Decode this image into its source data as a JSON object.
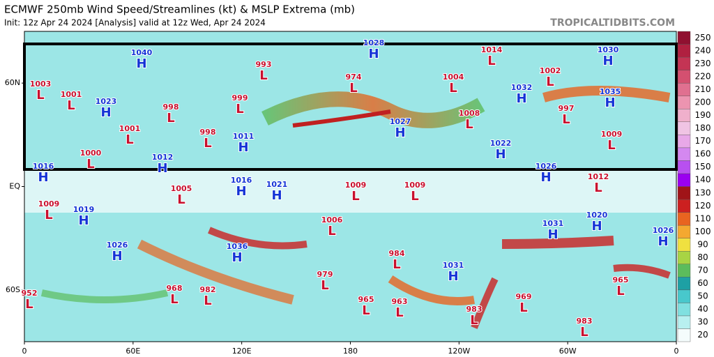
{
  "header": {
    "title": "ECMWF 250mb Wind Speed/Streamlines (kt) & MSLP Extrema (mb)",
    "subtitle": "Init: 12z Apr 24 2024   [Analysis]   valid at 12z Wed, Apr 24 2024",
    "site": "TROPICALTIDBITS.COM"
  },
  "map": {
    "xlim": [
      0,
      360
    ],
    "ylim": [
      -90,
      90
    ],
    "xticks": [
      {
        "value": 0,
        "label": "0"
      },
      {
        "value": 60,
        "label": "60E"
      },
      {
        "value": 120,
        "label": "120E"
      },
      180,
      {
        "value": 240,
        "label": "120W"
      },
      {
        "value": 300,
        "label": "60W"
      },
      {
        "value": 360,
        "label": "0"
      }
    ],
    "yticks": [
      {
        "value": 60,
        "label": "60N"
      },
      {
        "value": 0,
        "label": "EQ"
      },
      {
        "value": -60,
        "label": "60S"
      }
    ],
    "high_color": "#1433d6",
    "low_color": "#c8102e",
    "extrema": [
      {
        "kind": "H",
        "value": 1040
      },
      {
        "kind": "L",
        "value": 993
      },
      {
        "kind": "H",
        "value": 1028
      },
      {
        "kind": "L",
        "value": 1014
      },
      {
        "kind": "H",
        "value": 1030
      },
      {
        "kind": "L",
        "value": 1003
      },
      {
        "kind": "L",
        "value": 1001
      },
      {
        "kind": "H",
        "value": 1023
      },
      {
        "kind": "L",
        "value": 998
      },
      {
        "kind": "L",
        "value": 999
      },
      {
        "kind": "L",
        "value": 974
      },
      {
        "kind": "L",
        "value": 1004
      },
      {
        "kind": "L",
        "value": 1002
      },
      {
        "kind": "H",
        "value": 1032
      },
      {
        "kind": "H",
        "value": 1035
      },
      {
        "kind": "L",
        "value": 1001
      },
      {
        "kind": "L",
        "value": 998
      },
      {
        "kind": "H",
        "value": 1011
      },
      {
        "kind": "H",
        "value": 1027
      },
      {
        "kind": "L",
        "value": 1008
      },
      {
        "kind": "L",
        "value": 997
      },
      {
        "kind": "L",
        "value": 1009
      },
      {
        "kind": "H",
        "value": 1022
      },
      {
        "kind": "L",
        "value": 1000
      },
      {
        "kind": "H",
        "value": 1012
      },
      {
        "kind": "H",
        "value": 1016
      },
      {
        "kind": "H",
        "value": 1026
      },
      {
        "kind": "L",
        "value": 1012
      },
      {
        "kind": "L",
        "value": 1005
      },
      {
        "kind": "H",
        "value": 1016
      },
      {
        "kind": "H",
        "value": 1021
      },
      {
        "kind": "L",
        "value": 1009
      },
      {
        "kind": "L",
        "value": 1009
      },
      {
        "kind": "L",
        "value": 1009
      },
      {
        "kind": "H",
        "value": 1019
      },
      {
        "kind": "L",
        "value": 1006
      },
      {
        "kind": "H",
        "value": 1031
      },
      {
        "kind": "H",
        "value": 1020
      },
      {
        "kind": "H",
        "value": 1026
      },
      {
        "kind": "H",
        "value": 1036
      },
      {
        "kind": "L",
        "value": 984
      },
      {
        "kind": "H",
        "value": 1031
      },
      {
        "kind": "H",
        "value": 1026
      },
      {
        "kind": "L",
        "value": 979
      },
      {
        "kind": "L",
        "value": 965
      },
      {
        "kind": "L",
        "value": 952
      },
      {
        "kind": "L",
        "value": 968
      },
      {
        "kind": "L",
        "value": 982
      },
      {
        "kind": "L",
        "value": 965
      },
      {
        "kind": "L",
        "value": 963
      },
      {
        "kind": "L",
        "value": 983
      },
      {
        "kind": "L",
        "value": 969
      },
      {
        "kind": "L",
        "value": 983
      }
    ]
  },
  "colorbar": {
    "ticks": [
      20,
      30,
      40,
      50,
      60,
      70,
      80,
      90,
      100,
      110,
      120,
      130,
      140,
      150,
      160,
      170,
      180,
      190,
      200,
      210,
      220,
      230,
      240,
      250
    ],
    "colors": [
      "#f4fcfc",
      "#b8f0f0",
      "#80e0e0",
      "#48c8cc",
      "#1ea0a4",
      "#5cbc5c",
      "#a8d444",
      "#f0e040",
      "#f4a830",
      "#e86420",
      "#cc2020",
      "#a01418",
      "#9a00f0",
      "#b850f0",
      "#d488f0",
      "#e8a8e8",
      "#f0c4e4",
      "#f0b0cc",
      "#ec94b0",
      "#e07090",
      "#d45070",
      "#c43454",
      "#b02040",
      "#901030"
    ]
  }
}
